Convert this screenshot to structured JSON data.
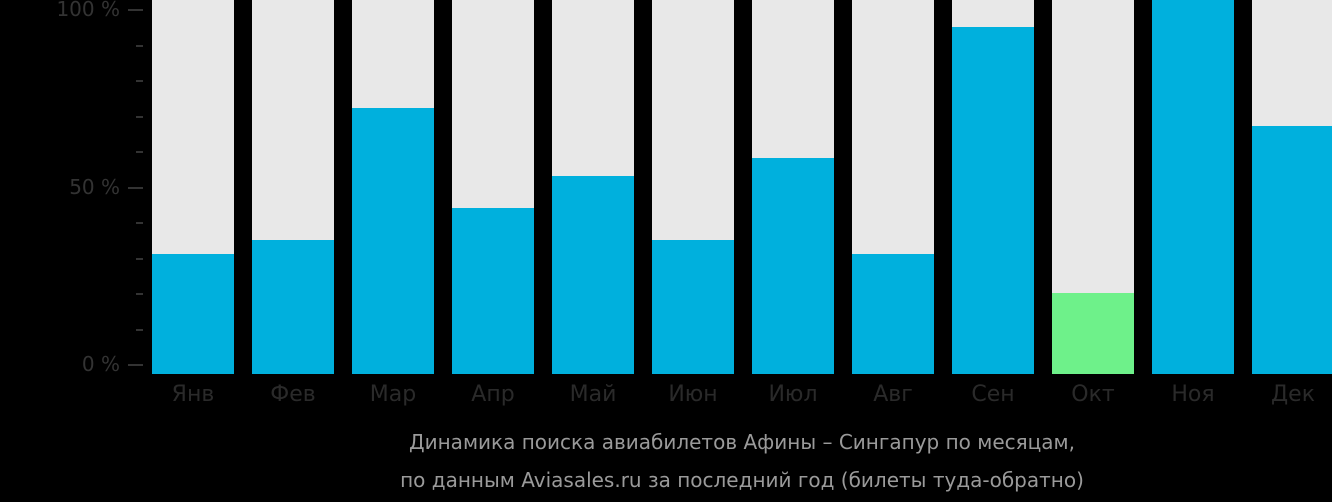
{
  "chart_data": {
    "type": "bar",
    "title": "Динамика поиска авиабилетов Афины – Сингапур по месяцам,",
    "subtitle": "по данным Aviasales.ru за последний год (билеты туда-обратно)",
    "xlabel": "",
    "ylabel": "",
    "ylim": [
      0,
      100
    ],
    "y_ticks": [
      "0 %",
      "50 %",
      "100 %"
    ],
    "grid": false,
    "legend": null,
    "categories": [
      "Янв",
      "Фев",
      "Мар",
      "Апр",
      "Май",
      "Июн",
      "Июл",
      "Авг",
      "Сен",
      "Окт",
      "Ноя",
      "Дек"
    ],
    "values": [
      31,
      35,
      72,
      44,
      53,
      35,
      58,
      31,
      95,
      20,
      100,
      67
    ],
    "highlight_index": 9,
    "colors": {
      "bar": "#00b0dd",
      "highlight": "#6ef18a",
      "track": "#e8e8e8",
      "background": "#000000"
    }
  },
  "axis": {
    "y_labels": [
      {
        "label": "100 %",
        "value": 100
      },
      {
        "label": "50 %",
        "value": 50
      },
      {
        "label": "0 %",
        "value": 0
      }
    ]
  },
  "caption": {
    "line1": "Динамика поиска авиабилетов Афины – Сингапур по месяцам,",
    "line2": "по данным Aviasales.ru за последний год (билеты туда-обратно)"
  }
}
